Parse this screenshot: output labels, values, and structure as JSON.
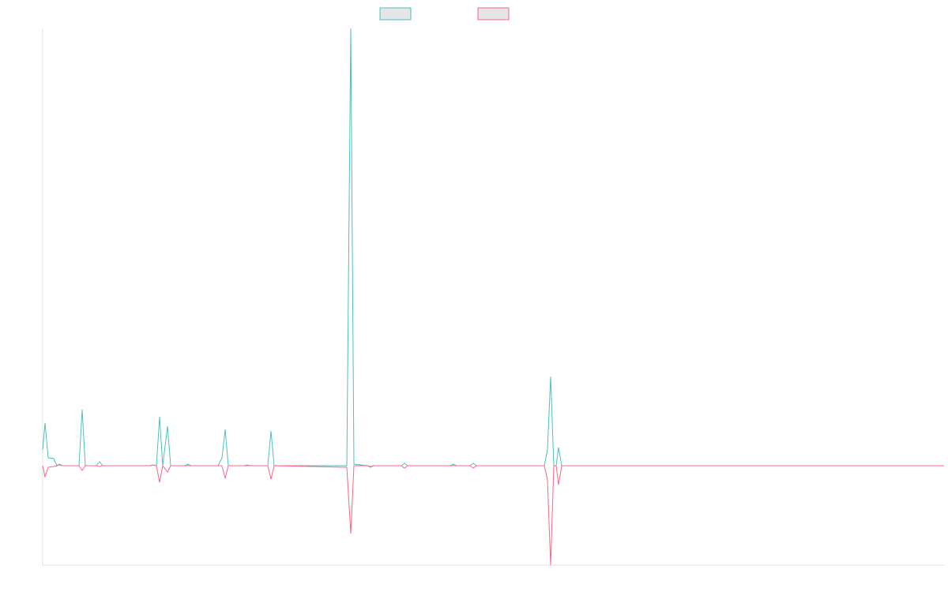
{
  "chart_data": {
    "type": "line",
    "x": [
      0,
      3,
      7,
      14,
      18,
      21,
      25,
      46,
      50,
      54,
      68,
      72,
      76,
      136,
      140,
      144,
      148,
      152,
      158,
      162,
      180,
      184,
      188,
      222,
      227,
      231,
      235,
      255,
      259,
      263,
      285,
      289,
      293,
      385,
      390,
      394,
      411,
      415,
      419,
      454,
      458,
      462,
      516,
      520,
      524,
      541,
      545,
      549,
      635,
      639,
      643,
      647,
      650,
      653,
      657,
      1141
    ],
    "series": [
      {
        "color": "#4bc0c0",
        "values": [
          20,
          54,
          10,
          9,
          0,
          2,
          0,
          0,
          71,
          0,
          0,
          5,
          0,
          0,
          1,
          0,
          62,
          0,
          50,
          0,
          0,
          2,
          0,
          0,
          10,
          46,
          0,
          0,
          1,
          0,
          0,
          44,
          0,
          0,
          554,
          2,
          0,
          -1,
          0,
          0,
          3,
          0,
          0,
          2,
          0,
          0,
          3,
          0,
          0,
          20,
          113,
          0,
          0,
          23,
          0,
          0
        ]
      },
      {
        "color": "#ff6384",
        "values": [
          0,
          -14,
          -2,
          -1,
          0,
          1,
          0,
          0,
          -6,
          0,
          0,
          -1,
          0,
          0,
          1,
          0,
          -21,
          0,
          -8,
          0,
          0,
          0,
          0,
          0,
          0,
          -16,
          0,
          0,
          0,
          0,
          0,
          -17,
          0,
          -2,
          -86,
          0,
          0,
          -2,
          0,
          0,
          -3,
          0,
          0,
          0,
          0,
          0,
          -3,
          0,
          0,
          -18,
          -126,
          0,
          0,
          -24,
          0,
          0
        ]
      }
    ],
    "xlim": [
      0,
      1141
    ],
    "ylim": [
      -126,
      554
    ]
  }
}
